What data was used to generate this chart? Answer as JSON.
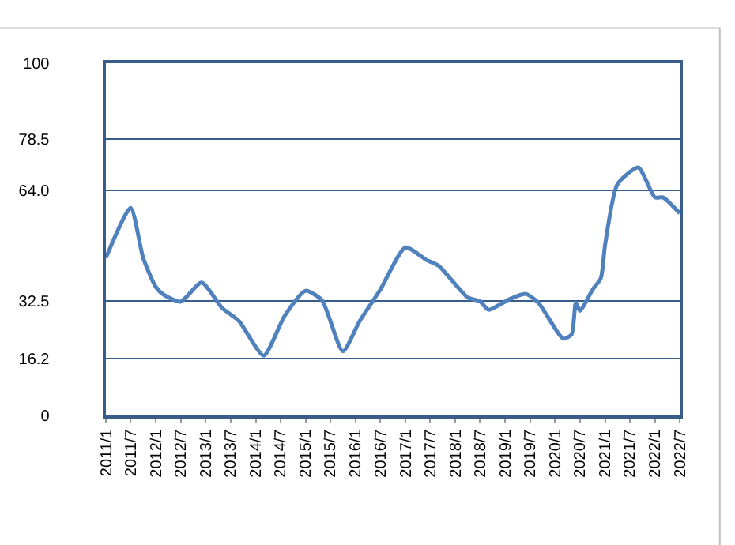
{
  "chart_data": {
    "type": "line",
    "marker": "none",
    "line_style": "solid",
    "grid": "y",
    "x": [
      "2011-01",
      "2011-07",
      "2011-10",
      "2012-01",
      "2012-03",
      "2012-07",
      "2012-12",
      "2013-05",
      "2013-09",
      "2014-03",
      "2014-08",
      "2015-01",
      "2015-05",
      "2015-10",
      "2016-02",
      "2016-07",
      "2017-01",
      "2017-06",
      "2017-09",
      "2018-04",
      "2018-07",
      "2018-09",
      "2019-02",
      "2019-06",
      "2019-09",
      "2020-03",
      "2020-05",
      "2020-06",
      "2020-07",
      "2020-10",
      "2020-12",
      "2021-01",
      "2021-04",
      "2021-09",
      "2022-01",
      "2022-03",
      "2022-07"
    ],
    "series": [
      {
        "color": "#4f81bd",
        "values": [
          44.7,
          58.9,
          44.7,
          36.5,
          34.2,
          32.3,
          37.7,
          30.5,
          26.8,
          17.0,
          28.3,
          35.4,
          32.7,
          18.2,
          26.8,
          35.7,
          47.7,
          44.2,
          42.5,
          33.5,
          32.4,
          30.0,
          33.0,
          34.5,
          32.0,
          21.8,
          23.0,
          32.0,
          29.7,
          35.7,
          39.0,
          48.4,
          65.6,
          70.4,
          61.9,
          61.9,
          57.4
        ]
      }
    ],
    "ylim": [
      0,
      100
    ],
    "yticks": [
      0,
      16.2,
      32.5,
      {
        "value": 64.0,
        "label": "64.0"
      },
      78.5,
      100
    ],
    "xlim": [
      "2011-01",
      "2022-07"
    ],
    "xticks": [
      {
        "value": "2011-01",
        "label": "2011/1"
      },
      {
        "value": "2011-07",
        "label": "2011/7"
      },
      {
        "value": "2012-01",
        "label": "2012/1"
      },
      {
        "value": "2012-07",
        "label": "2012/7"
      },
      {
        "value": "2013-01",
        "label": "2013/1"
      },
      {
        "value": "2013-07",
        "label": "2013/7"
      },
      {
        "value": "2014-01",
        "label": "2014/1"
      },
      {
        "value": "2014-07",
        "label": "2014/7"
      },
      {
        "value": "2015-01",
        "label": "2015/1"
      },
      {
        "value": "2015-07",
        "label": "2015/7"
      },
      {
        "value": "2016-01",
        "label": "2016/1"
      },
      {
        "value": "2016-07",
        "label": "2016/7"
      },
      {
        "value": "2017-01",
        "label": "2017/1"
      },
      {
        "value": "2017-07",
        "label": "2017/7"
      },
      {
        "value": "2018-01",
        "label": "2018/1"
      },
      {
        "value": "2018-07",
        "label": "2018/7"
      },
      {
        "value": "2019-01",
        "label": "2019/1"
      },
      {
        "value": "2019-07",
        "label": "2019/7"
      },
      {
        "value": "2020-01",
        "label": "2020/1"
      },
      {
        "value": "2020-07",
        "label": "2020/7"
      },
      {
        "value": "2021-01",
        "label": "2021/1"
      },
      {
        "value": "2021-07",
        "label": "2021/7"
      },
      {
        "value": "2022-01",
        "label": "2022/1"
      },
      {
        "value": "2022-07",
        "label": "2022/7"
      }
    ]
  }
}
